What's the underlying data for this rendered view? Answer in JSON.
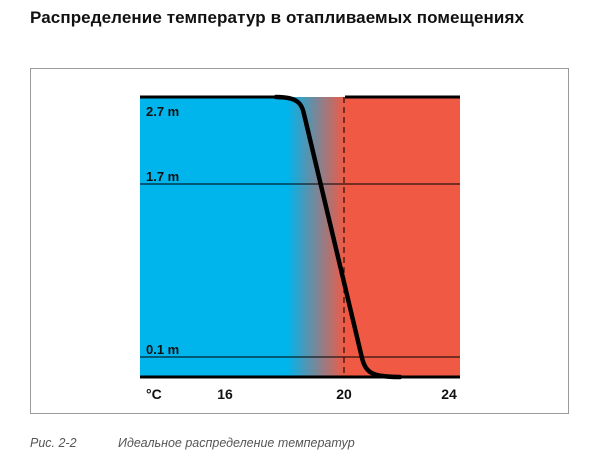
{
  "title": "Распределение температур в отапливаемых помещениях",
  "caption": {
    "figure_number": "Рис. 2-2",
    "text": "Идеальное распределение температур"
  },
  "colors": {
    "cold": "#00b4ec",
    "warm": "#f05a45",
    "curve": "#000000"
  },
  "diagram": {
    "height_labels": [
      "2.7 m",
      "1.7 m",
      "0.1 m"
    ],
    "axis_unit": "°C",
    "axis_ticks": [
      "16",
      "20",
      "24"
    ]
  }
}
